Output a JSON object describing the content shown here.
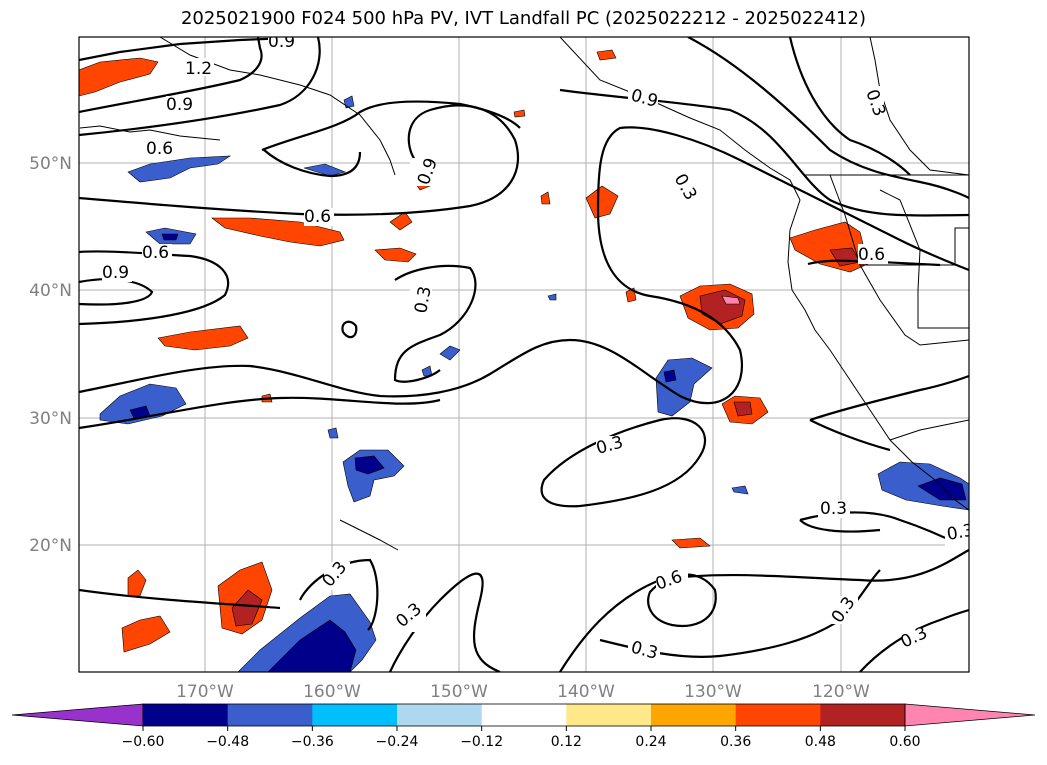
{
  "title": "2025021900 F024 500 hPa PV, IVT Landfall PC (2025022212 - 2025022412)",
  "lat_labels": [
    "50°N",
    "40°N",
    "30°N",
    "20°N"
  ],
  "lon_labels": [
    "170°W",
    "160°W",
    "150°W",
    "140°W",
    "130°W",
    "120°W"
  ],
  "contour_labels": [
    "1.2",
    "0.9",
    "0.9",
    "0.6",
    "0.6",
    "0.6",
    "0.9",
    "0.9",
    "0.9",
    "0.3",
    "0.3",
    "0.6",
    "0.3",
    "0.3",
    "0.3",
    "0.3",
    "0.6",
    "0.3",
    "0.3",
    "0.3",
    "0.3",
    "0.3"
  ],
  "colorbar": {
    "ticks": [
      "−0.60",
      "−0.48",
      "−0.36",
      "−0.24",
      "−0.12",
      "0.12",
      "0.24",
      "0.36",
      "0.48",
      "0.60"
    ],
    "colors": [
      "#9932cc",
      "#00008b",
      "#3a5fcd",
      "#00bfff",
      "#add8f0",
      "#ffffff",
      "#ffe88a",
      "#ffa500",
      "#ff4500",
      "#b22222",
      "#ff85b0"
    ]
  }
}
